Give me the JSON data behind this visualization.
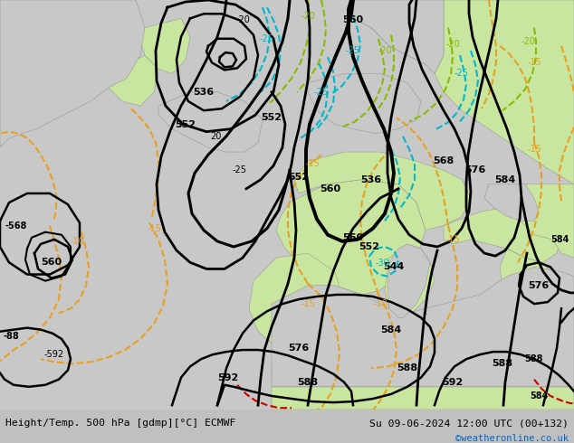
{
  "title_left": "Height/Temp. 500 hPa [gdmp][°C] ECMWF",
  "title_right": "Su 09-06-2024 12:00 UTC (00+132)",
  "credit": "©weatheronline.co.uk",
  "credit_color": "#0066cc",
  "col_land": "#c8e6a0",
  "col_sea": "#c8c8c8",
  "col_coast": "#888888",
  "col_geop": "#000000",
  "col_temp_warm": "#e8a020",
  "col_temp_cold": "#00b8cc",
  "col_temp_green": "#88bb00",
  "col_temp_red": "#cc0000",
  "figsize": [
    6.34,
    4.9
  ],
  "dpi": 100
}
